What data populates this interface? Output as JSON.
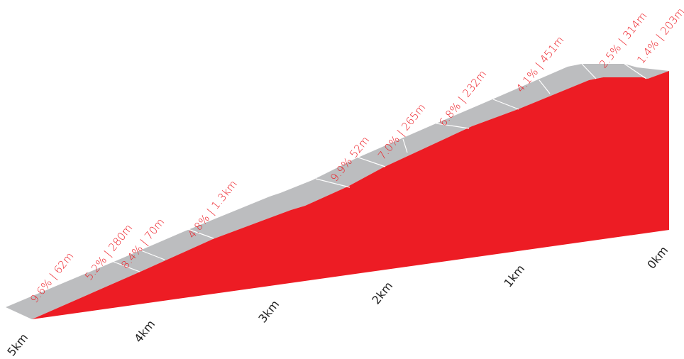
{
  "colors": {
    "profile_fill": "#ed1c24",
    "top_face": "#bcbdbf",
    "segment_divider": "#ffffff",
    "segment_label": "#ed1c24",
    "km_label": "#222222"
  },
  "chart_data": {
    "type": "area",
    "title": "",
    "subtitle": "",
    "xlabel": "",
    "ylabel": "",
    "style": "3D elevation profile, distance counts down to the finish",
    "x_unit": "km remaining",
    "xlim": [
      5,
      0
    ],
    "km_markers": [
      {
        "km": 5,
        "label": "5km"
      },
      {
        "km": 4,
        "label": "4km"
      },
      {
        "km": 3,
        "label": "3km"
      },
      {
        "km": 2,
        "label": "2km"
      },
      {
        "km": 1,
        "label": "1km"
      },
      {
        "km": 0,
        "label": "0km"
      }
    ],
    "segments": [
      {
        "label": "9.6% | 62m",
        "gradient_pct": 9.6,
        "length_m": 62
      },
      {
        "label": "5.2% | 280m",
        "gradient_pct": 5.2,
        "length_m": 280
      },
      {
        "label": "8.4% | 70m",
        "gradient_pct": 8.4,
        "length_m": 70
      },
      {
        "label": "4.8% | 1.3km",
        "gradient_pct": 4.8,
        "length_m": 1300
      },
      {
        "label": "9.9% 52m",
        "gradient_pct": 9.9,
        "length_m": 52
      },
      {
        "label": "7.0% | 265m",
        "gradient_pct": 7.0,
        "length_m": 265
      },
      {
        "label": "6.8% | 232m",
        "gradient_pct": 6.8,
        "length_m": 232
      },
      {
        "label": "4.1% | 451m",
        "gradient_pct": 4.1,
        "length_m": 451
      },
      {
        "label": "2.5% | 314m",
        "gradient_pct": 2.5,
        "length_m": 314
      },
      {
        "label": "1.4% | 203m",
        "gradient_pct": 1.4,
        "length_m": 203
      }
    ]
  }
}
